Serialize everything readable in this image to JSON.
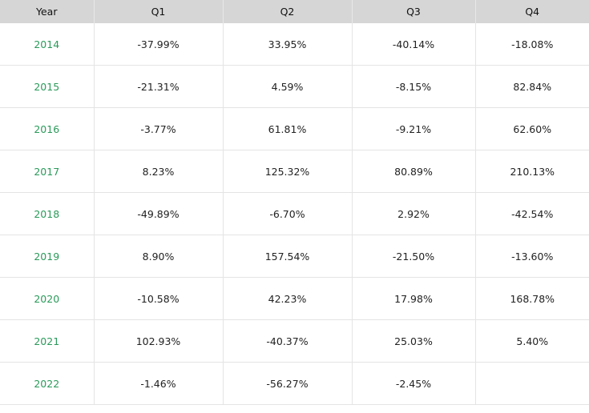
{
  "table": {
    "columns": [
      "Year",
      "Q1",
      "Q2",
      "Q3",
      "Q4"
    ],
    "rows": [
      [
        "2014",
        "-37.99%",
        "33.95%",
        "-40.14%",
        "-18.08%"
      ],
      [
        "2015",
        "-21.31%",
        "4.59%",
        "-8.15%",
        "82.84%"
      ],
      [
        "2016",
        "-3.77%",
        "61.81%",
        "-9.21%",
        "62.60%"
      ],
      [
        "2017",
        "8.23%",
        "125.32%",
        "80.89%",
        "210.13%"
      ],
      [
        "2018",
        "-49.89%",
        "-6.70%",
        "2.92%",
        "-42.54%"
      ],
      [
        "2019",
        "8.90%",
        "157.54%",
        "-21.50%",
        "-13.60%"
      ],
      [
        "2020",
        "-10.58%",
        "42.23%",
        "17.98%",
        "168.78%"
      ],
      [
        "2021",
        "102.93%",
        "-40.37%",
        "25.03%",
        "5.40%"
      ],
      [
        "2022",
        "-1.46%",
        "-56.27%",
        "-2.45%",
        null
      ]
    ]
  }
}
